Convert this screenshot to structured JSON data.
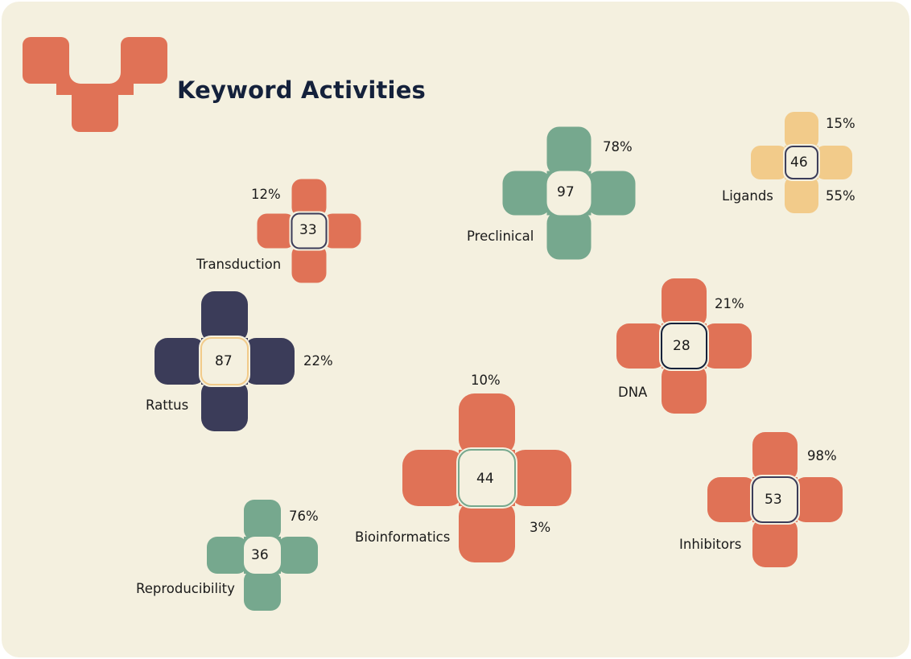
{
  "title": "Keyword Activities",
  "colors": {
    "background": "#f4f0df",
    "coral": "#e07256",
    "green": "#76a88e",
    "sand": "#f2cb8a",
    "navy": "#3b3c59"
  },
  "keywords": [
    {
      "name": "Transduction",
      "value": "33",
      "pct_a": "12%",
      "pct_b": "",
      "color": "#e07256"
    },
    {
      "name": "Preclinical",
      "value": "97",
      "pct_a": "78%",
      "pct_b": "",
      "color": "#76a88e"
    },
    {
      "name": "Ligands",
      "value": "46",
      "pct_a": "15%",
      "pct_b": "55%",
      "color": "#f2cb8a"
    },
    {
      "name": "Rattus",
      "value": "87",
      "pct_a": "22%",
      "pct_b": "",
      "color": "#3b3c59"
    },
    {
      "name": "DNA",
      "value": "28",
      "pct_a": "21%",
      "pct_b": "",
      "color": "#e07256"
    },
    {
      "name": "Bioinformatics",
      "value": "44",
      "pct_a": "10%",
      "pct_b": "3%",
      "color": "#e07256"
    },
    {
      "name": "Inhibitors",
      "value": "53",
      "pct_a": "98%",
      "pct_b": "",
      "color": "#e07256"
    },
    {
      "name": "Reproducibility",
      "value": "36",
      "pct_a": "76%",
      "pct_b": "",
      "color": "#76a88e"
    }
  ]
}
